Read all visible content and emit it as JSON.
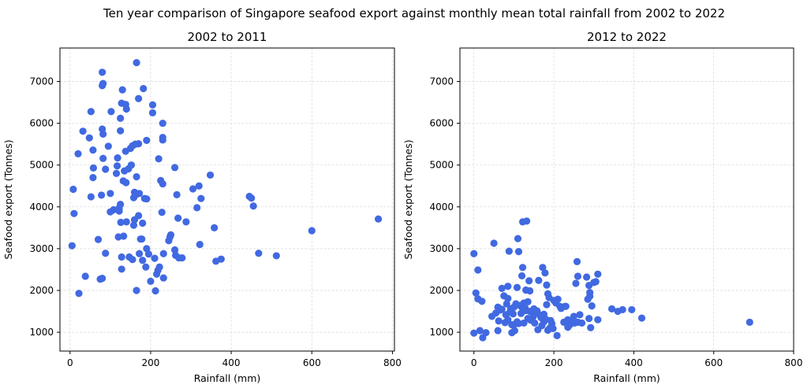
{
  "suptitle": "Ten year comparison of Singapore seafood export against monthly mean total rainfall from 2002 to 2022",
  "colors": {
    "marker": "#4169E1",
    "grid": "#d9d9d9",
    "axis": "#000000"
  },
  "chart_data": [
    {
      "type": "scatter",
      "title": "2002 to 2011",
      "xlabel": "Rainfall (mm)",
      "ylabel": "Seafood export (Tonnes)",
      "xlim": [
        -25,
        805
      ],
      "ylim": [
        550,
        7800
      ],
      "xticks": [
        0,
        200,
        400,
        600,
        800
      ],
      "yticks": [
        1000,
        2000,
        3000,
        4000,
        5000,
        6000,
        7000
      ],
      "grid": true,
      "series": [
        {
          "marker_color": "#4169E1",
          "points": [
            [
              5,
              3070
            ],
            [
              8,
              4420
            ],
            [
              10,
              3840
            ],
            [
              20,
              5270
            ],
            [
              22,
              1930
            ],
            [
              32,
              5810
            ],
            [
              38,
              2340
            ],
            [
              48,
              5650
            ],
            [
              52,
              6280
            ],
            [
              52,
              4240
            ],
            [
              57,
              4700
            ],
            [
              57,
              5360
            ],
            [
              58,
              4930
            ],
            [
              70,
              3220
            ],
            [
              75,
              2270
            ],
            [
              78,
              4280
            ],
            [
              80,
              2290
            ],
            [
              80,
              7220
            ],
            [
              80,
              6900
            ],
            [
              80,
              5860
            ],
            [
              82,
              6950
            ],
            [
              82,
              5160
            ],
            [
              82,
              5740
            ],
            [
              88,
              2890
            ],
            [
              88,
              4900
            ],
            [
              95,
              5450
            ],
            [
              100,
              3880
            ],
            [
              100,
              4320
            ],
            [
              102,
              6280
            ],
            [
              108,
              3930
            ],
            [
              115,
              4800
            ],
            [
              117,
              4980
            ],
            [
              118,
              5170
            ],
            [
              120,
              3280
            ],
            [
              122,
              3970
            ],
            [
              122,
              3900
            ],
            [
              125,
              5820
            ],
            [
              125,
              6120
            ],
            [
              125,
              4060
            ],
            [
              126,
              3630
            ],
            [
              128,
              6480
            ],
            [
              128,
              2510
            ],
            [
              128,
              2800
            ],
            [
              130,
              6800
            ],
            [
              132,
              4620
            ],
            [
              133,
              3300
            ],
            [
              135,
              4860
            ],
            [
              138,
              6450
            ],
            [
              138,
              5330
            ],
            [
              139,
              4580
            ],
            [
              140,
              6340
            ],
            [
              140,
              3640
            ],
            [
              145,
              4910
            ],
            [
              147,
              2800
            ],
            [
              150,
              5400
            ],
            [
              152,
              5000
            ],
            [
              155,
              5460
            ],
            [
              155,
              2740
            ],
            [
              158,
              3560
            ],
            [
              158,
              4220
            ],
            [
              160,
              3690
            ],
            [
              160,
              4350
            ],
            [
              162,
              5500
            ],
            [
              165,
              7450
            ],
            [
              165,
              2000
            ],
            [
              165,
              4720
            ],
            [
              165,
              4300
            ],
            [
              170,
              6590
            ],
            [
              170,
              5510
            ],
            [
              170,
              3790
            ],
            [
              172,
              2880
            ],
            [
              172,
              4320
            ],
            [
              175,
              3230
            ],
            [
              178,
              3230
            ],
            [
              180,
              3610
            ],
            [
              180,
              2720
            ],
            [
              182,
              6830
            ],
            [
              185,
              4200
            ],
            [
              188,
              2560
            ],
            [
              190,
              5590
            ],
            [
              190,
              4190
            ],
            [
              190,
              3000
            ],
            [
              195,
              2870
            ],
            [
              200,
              2220
            ],
            [
              205,
              6440
            ],
            [
              205,
              6250
            ],
            [
              210,
              2770
            ],
            [
              212,
              1990
            ],
            [
              215,
              2390
            ],
            [
              218,
              2480
            ],
            [
              220,
              5150
            ],
            [
              222,
              2560
            ],
            [
              225,
              4630
            ],
            [
              228,
              3870
            ],
            [
              230,
              4550
            ],
            [
              230,
              5660
            ],
            [
              230,
              5600
            ],
            [
              230,
              6000
            ],
            [
              232,
              2880
            ],
            [
              232,
              2300
            ],
            [
              245,
              3190
            ],
            [
              248,
              3280
            ],
            [
              250,
              3330
            ],
            [
              260,
              2970
            ],
            [
              260,
              4940
            ],
            [
              262,
              2840
            ],
            [
              265,
              4290
            ],
            [
              268,
              3730
            ],
            [
              270,
              2780
            ],
            [
              278,
              2780
            ],
            [
              288,
              3640
            ],
            [
              305,
              4430
            ],
            [
              315,
              3980
            ],
            [
              320,
              4500
            ],
            [
              322,
              3100
            ],
            [
              325,
              4200
            ],
            [
              348,
              4760
            ],
            [
              358,
              3500
            ],
            [
              362,
              2700
            ],
            [
              375,
              2750
            ],
            [
              445,
              4250
            ],
            [
              450,
              4210
            ],
            [
              455,
              4020
            ],
            [
              468,
              2890
            ],
            [
              512,
              2830
            ],
            [
              600,
              3430
            ],
            [
              765,
              3710
            ]
          ]
        }
      ]
    },
    {
      "type": "scatter",
      "title": "2012 to 2022",
      "xlabel": "Rainfall (mm)",
      "ylabel": "Seafood export (Tonnes)",
      "xlim": [
        -35,
        800
      ],
      "ylim": [
        550,
        7800
      ],
      "xticks": [
        0,
        200,
        400,
        600,
        800
      ],
      "yticks": [
        1000,
        2000,
        3000,
        4000,
        5000,
        6000,
        7000
      ],
      "grid": true,
      "series": [
        {
          "marker_color": "#4169E1",
          "points": [
            [
              0,
              2880
            ],
            [
              0,
              980
            ],
            [
              5,
              1940
            ],
            [
              10,
              2490
            ],
            [
              10,
              1800
            ],
            [
              15,
              1040
            ],
            [
              20,
              1740
            ],
            [
              22,
              870
            ],
            [
              30,
              990
            ],
            [
              45,
              1380
            ],
            [
              50,
              3130
            ],
            [
              55,
              1460
            ],
            [
              60,
              1600
            ],
            [
              60,
              1040
            ],
            [
              62,
              1270
            ],
            [
              65,
              1530
            ],
            [
              70,
              2050
            ],
            [
              70,
              1550
            ],
            [
              75,
              1870
            ],
            [
              78,
              1230
            ],
            [
              80,
              1420
            ],
            [
              82,
              1680
            ],
            [
              85,
              2100
            ],
            [
              85,
              1810
            ],
            [
              85,
              1300
            ],
            [
              88,
              2940
            ],
            [
              90,
              1480
            ],
            [
              92,
              1560
            ],
            [
              95,
              1180
            ],
            [
              95,
              990
            ],
            [
              98,
              1440
            ],
            [
              100,
              1600
            ],
            [
              100,
              1180
            ],
            [
              102,
              1040
            ],
            [
              105,
              1680
            ],
            [
              108,
              2070
            ],
            [
              108,
              1250
            ],
            [
              110,
              3240
            ],
            [
              112,
              2930
            ],
            [
              112,
              1210
            ],
            [
              115,
              1640
            ],
            [
              118,
              1450
            ],
            [
              120,
              1600
            ],
            [
              120,
              2350
            ],
            [
              122,
              2550
            ],
            [
              122,
              3640
            ],
            [
              125,
              1700
            ],
            [
              125,
              1220
            ],
            [
              128,
              1580
            ],
            [
              130,
              2010
            ],
            [
              130,
              1520
            ],
            [
              132,
              3660
            ],
            [
              135,
              1730
            ],
            [
              135,
              1330
            ],
            [
              138,
              2230
            ],
            [
              140,
              1990
            ],
            [
              140,
              1500
            ],
            [
              142,
              1290
            ],
            [
              148,
              1370
            ],
            [
              150,
              1560
            ],
            [
              152,
              1220
            ],
            [
              155,
              1460
            ],
            [
              158,
              1510
            ],
            [
              160,
              1060
            ],
            [
              162,
              2240
            ],
            [
              165,
              1410
            ],
            [
              168,
              1350
            ],
            [
              170,
              1160
            ],
            [
              172,
              2550
            ],
            [
              175,
              1430
            ],
            [
              175,
              1250
            ],
            [
              178,
              2420
            ],
            [
              180,
              1310
            ],
            [
              182,
              1660
            ],
            [
              182,
              2130
            ],
            [
              185,
              1920
            ],
            [
              185,
              1050
            ],
            [
              188,
              1830
            ],
            [
              190,
              1100
            ],
            [
              192,
              1280
            ],
            [
              195,
              1210
            ],
            [
              198,
              1090
            ],
            [
              200,
              1760
            ],
            [
              205,
              1710
            ],
            [
              205,
              1700
            ],
            [
              208,
              920
            ],
            [
              210,
              1790
            ],
            [
              215,
              1620
            ],
            [
              218,
              1570
            ],
            [
              225,
              1240
            ],
            [
              228,
              1620
            ],
            [
              230,
              1620
            ],
            [
              235,
              1300
            ],
            [
              235,
              1120
            ],
            [
              240,
              1180
            ],
            [
              245,
              1240
            ],
            [
              250,
              1380
            ],
            [
              252,
              1220
            ],
            [
              255,
              2170
            ],
            [
              258,
              2690
            ],
            [
              260,
              1240
            ],
            [
              260,
              2340
            ],
            [
              265,
              1420
            ],
            [
              270,
              1220
            ],
            [
              282,
              2320
            ],
            [
              285,
              1790
            ],
            [
              288,
              2120
            ],
            [
              288,
              1330
            ],
            [
              290,
              1950
            ],
            [
              290,
              1860
            ],
            [
              292,
              1110
            ],
            [
              295,
              1630
            ],
            [
              300,
              2190
            ],
            [
              305,
              2210
            ],
            [
              310,
              1300
            ],
            [
              310,
              2390
            ],
            [
              345,
              1560
            ],
            [
              360,
              1500
            ],
            [
              372,
              1540
            ],
            [
              395,
              1540
            ],
            [
              420,
              1340
            ],
            [
              690,
              1240
            ]
          ]
        }
      ]
    }
  ]
}
